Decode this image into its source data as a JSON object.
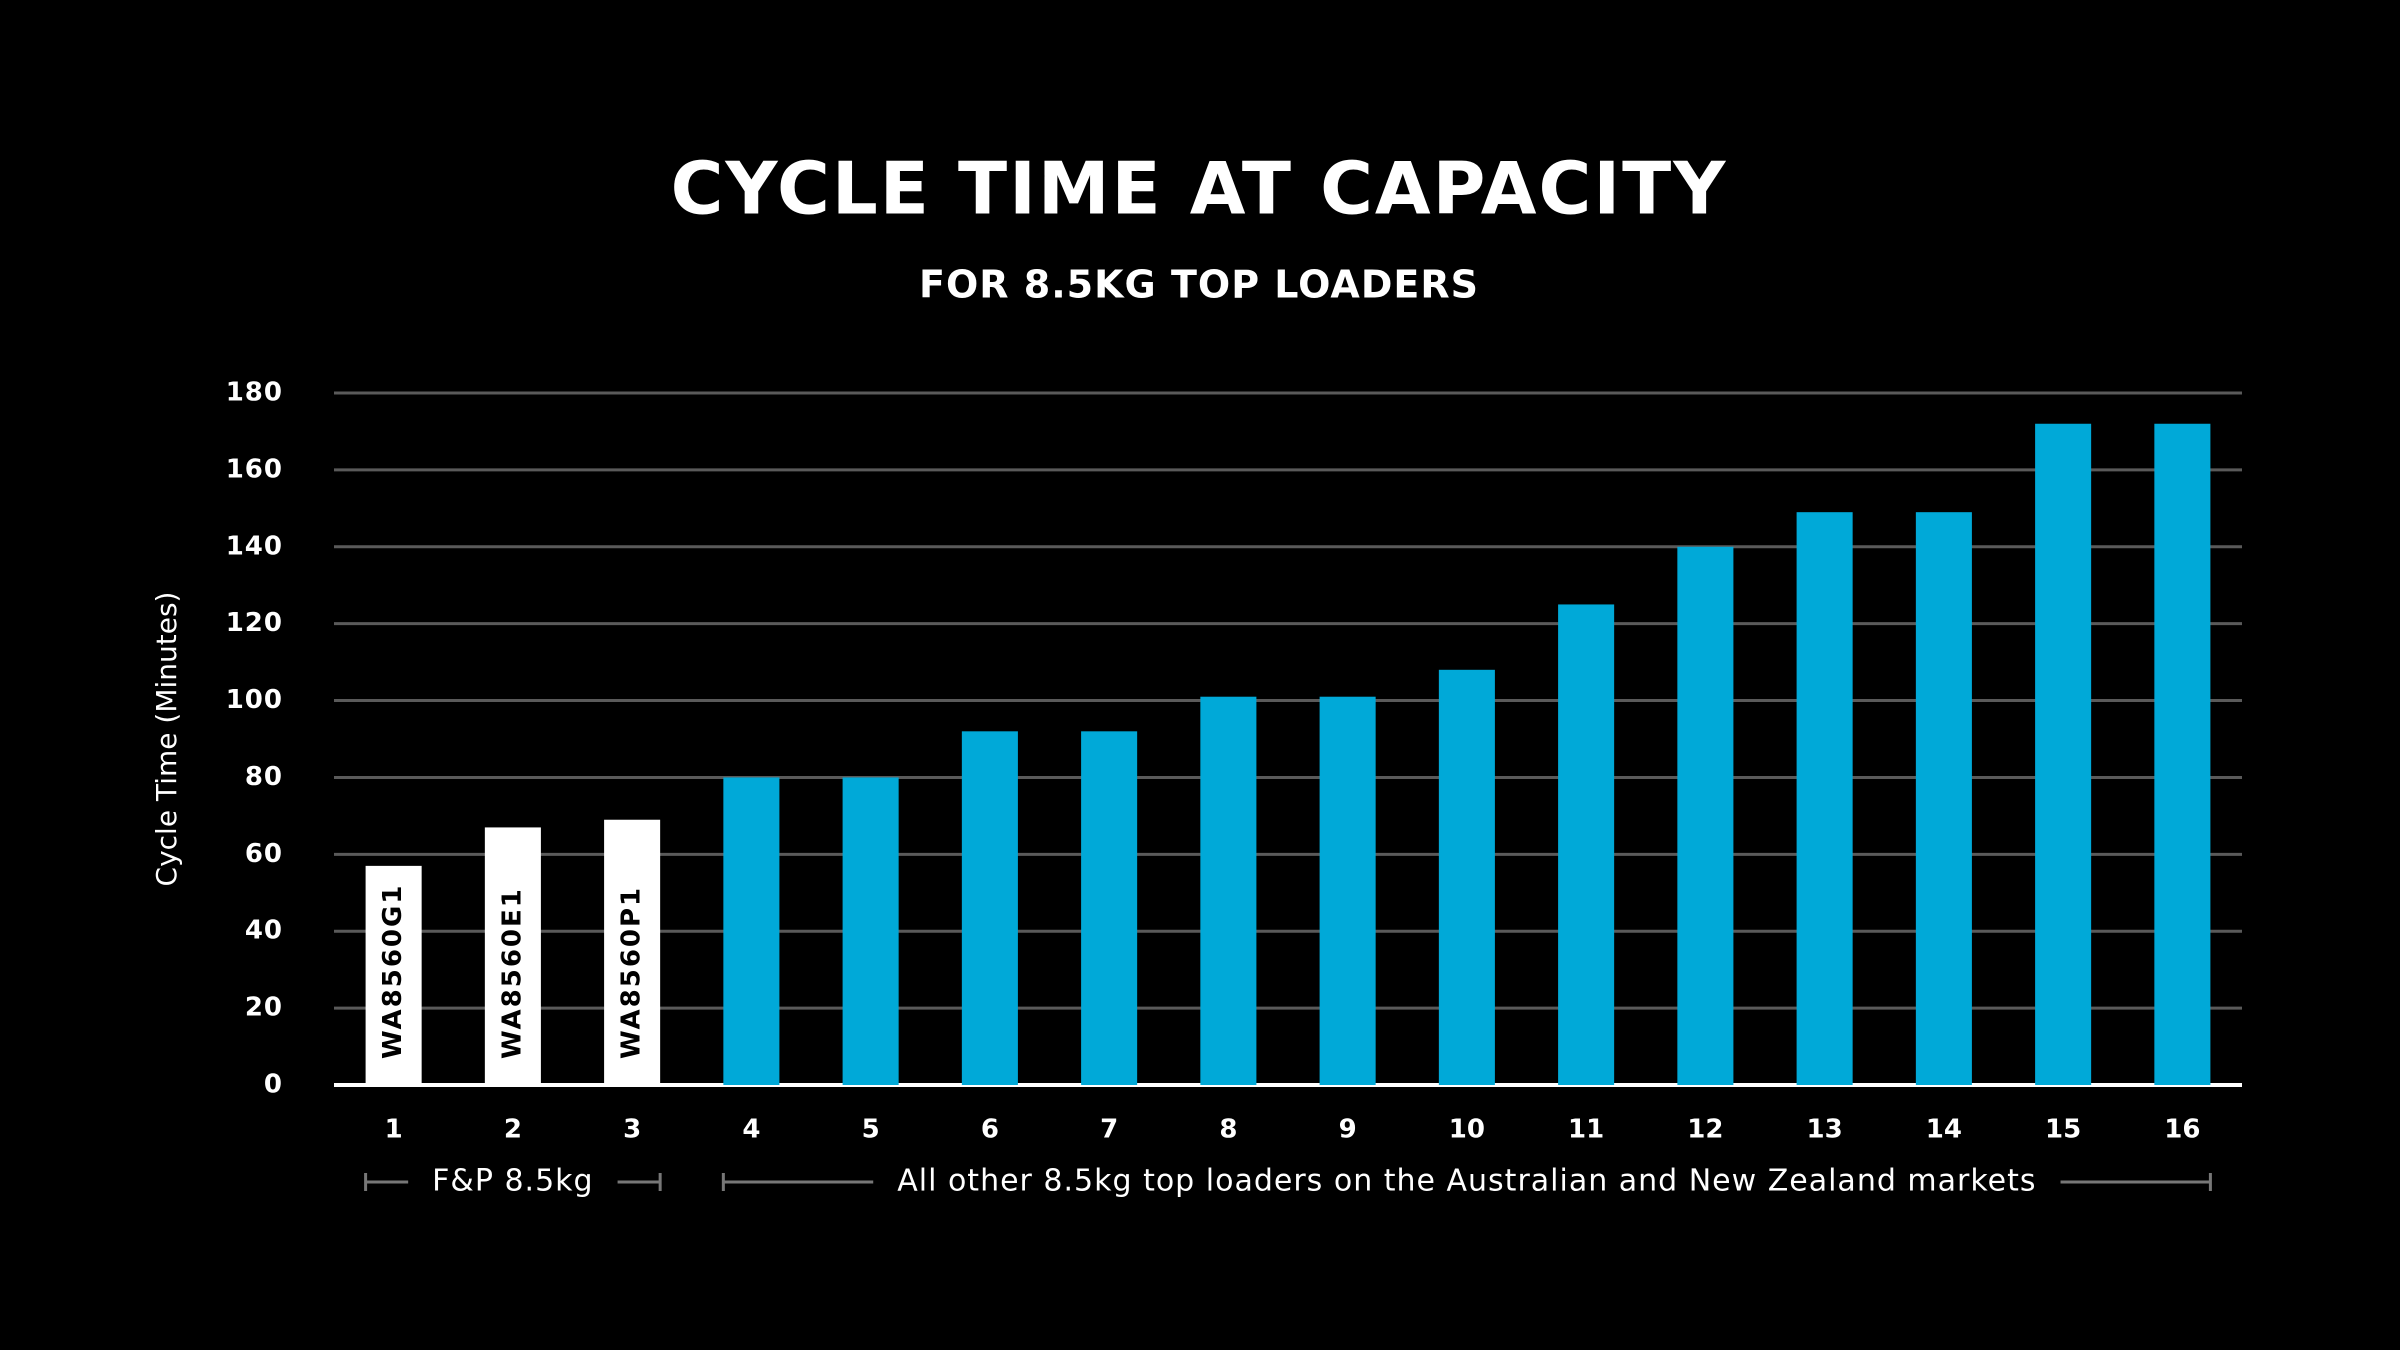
{
  "chart_data": {
    "type": "bar",
    "title": "CYCLE TIME AT CAPACITY",
    "subtitle": "FOR 8.5KG TOP LOADERS",
    "y_label": "Cycle Time (Minutes)",
    "categories": [
      "1",
      "2",
      "3",
      "4",
      "5",
      "6",
      "7",
      "8",
      "9",
      "10",
      "11",
      "12",
      "13",
      "14",
      "15",
      "16"
    ],
    "series": [
      {
        "name": "F&P 8.5kg",
        "color": "#ffffff",
        "values": [
          57,
          67,
          69,
          null,
          null,
          null,
          null,
          null,
          null,
          null,
          null,
          null,
          null,
          null,
          null,
          null
        ],
        "bar_labels": [
          "WA8560G1",
          "WA8560E1",
          "WA8560P1",
          null,
          null,
          null,
          null,
          null,
          null,
          null,
          null,
          null,
          null,
          null,
          null,
          null
        ]
      },
      {
        "name": "All other 8.5kg top loaders on the Australian and New Zealand markets",
        "color": "#00a9d8",
        "values": [
          null,
          null,
          null,
          80,
          80,
          92,
          92,
          101,
          101,
          108,
          125,
          140,
          149,
          149,
          172,
          172
        ]
      }
    ],
    "ylim": [
      0,
      180
    ],
    "yticks": [
      0,
      20,
      40,
      60,
      80,
      100,
      120,
      140,
      160,
      180
    ],
    "grid": true
  }
}
